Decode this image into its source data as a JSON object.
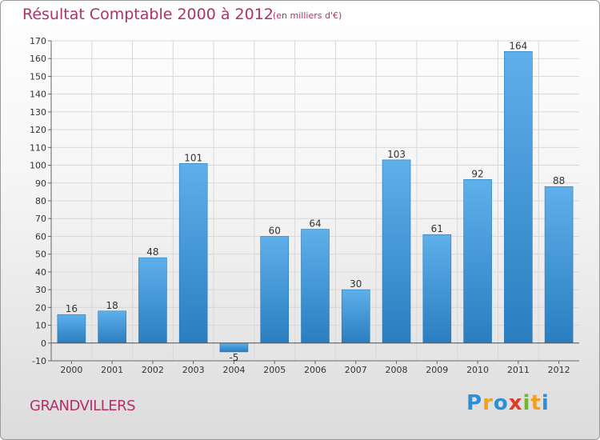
{
  "title": "Résultat Comptable 2000 à 2012",
  "subtitle": "(en milliers d'€)",
  "commune": "GRANDVILLERS",
  "logo": {
    "text": "Proxiti",
    "letters": [
      {
        "ch": "P",
        "color": "#2e8fd8"
      },
      {
        "ch": "r",
        "color": "#f0a020"
      },
      {
        "ch": "o",
        "color": "#2e8fd8"
      },
      {
        "ch": "x",
        "color": "#e03a2a"
      },
      {
        "ch": "i",
        "color": "#6fb82d"
      },
      {
        "ch": "t",
        "color": "#f0a020"
      },
      {
        "ch": "i",
        "color": "#2e8fd8"
      }
    ]
  },
  "colors": {
    "title": "#b0306a",
    "bar_light": "#5eb0ea",
    "bar_dark": "#2a7ec0",
    "axis": "#666666",
    "grid": "#d8d8d8"
  },
  "chart_data": {
    "type": "bar",
    "title": "Résultat Comptable 2000 à 2012",
    "xlabel": "",
    "ylabel": "",
    "ylim": [
      -10,
      170
    ],
    "ytick_step": 10,
    "categories": [
      "2000",
      "2001",
      "2002",
      "2003",
      "2004",
      "2005",
      "2006",
      "2007",
      "2008",
      "2009",
      "2010",
      "2011",
      "2012"
    ],
    "values": [
      16,
      18,
      48,
      101,
      -5,
      60,
      64,
      30,
      103,
      61,
      92,
      164,
      88
    ]
  }
}
